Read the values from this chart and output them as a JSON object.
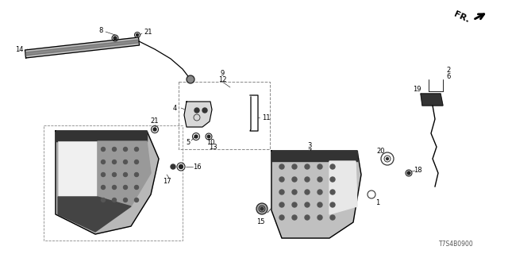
{
  "part_number": "T7S4B0900",
  "bg_color": "#ffffff",
  "line_color": "#000000",
  "dark_gray": "#333333",
  "mid_gray": "#888888",
  "light_gray": "#cccccc"
}
